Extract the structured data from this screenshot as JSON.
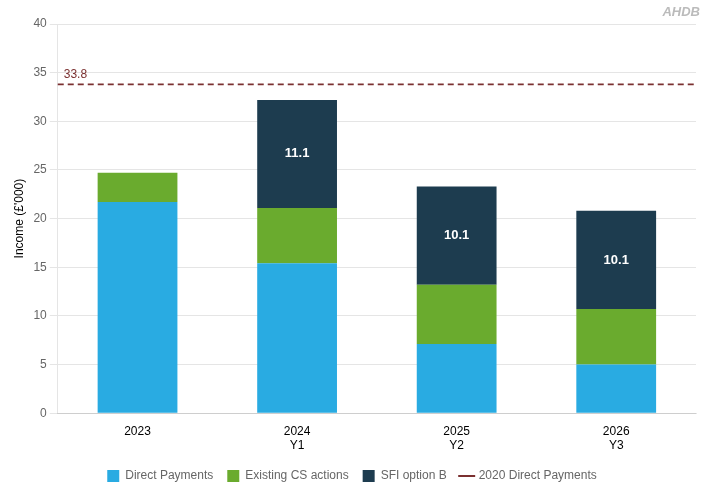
{
  "chart_data": {
    "type": "bar",
    "stacked": true,
    "categories": [
      [
        "2023"
      ],
      [
        "2024",
        "Y1"
      ],
      [
        "2025",
        "Y2"
      ],
      [
        "2026",
        "Y3"
      ]
    ],
    "series": [
      {
        "name": "Direct Payments",
        "color": "#29ABE2",
        "values": [
          21.7,
          15.4,
          7.1,
          5.0
        ]
      },
      {
        "name": "Existing CS actions",
        "color": "#6AAB2E",
        "values": [
          3.0,
          5.7,
          6.1,
          5.7
        ]
      },
      {
        "name": "SFI option B",
        "color": "#1D3C4F",
        "values": [
          0.0,
          11.1,
          10.1,
          10.1
        ],
        "data_labels": true,
        "value_labels": [
          null,
          "11.1",
          "10.1",
          "10.1"
        ]
      }
    ],
    "reference_lines": [
      {
        "name": "2020 Direct Payments",
        "value": 33.8,
        "label": "33.8",
        "color": "#7B3030",
        "line_style": "dashed"
      }
    ],
    "annotations": [
      {
        "text": "AHDB"
      }
    ],
    "ylabel": "Income (£'000)",
    "ylim": [
      0,
      40
    ],
    "yticks": [
      0,
      5,
      10,
      15,
      20,
      25,
      30,
      35,
      40
    ],
    "grid": true,
    "legend": "bottom"
  }
}
